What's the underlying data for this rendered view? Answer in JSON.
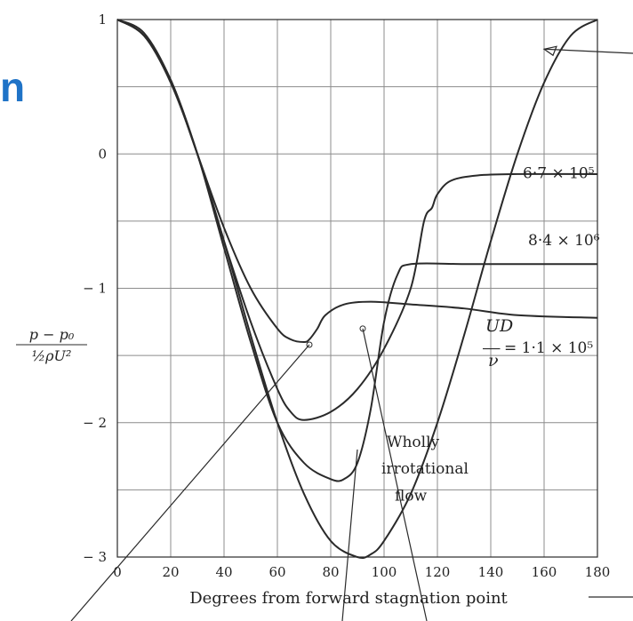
{
  "fragment_text": "n",
  "colors": {
    "accent": "#1f73c7",
    "ink": "#2a2a2a",
    "grid": "#8c8c8c"
  },
  "chart_data": {
    "type": "line",
    "xlabel": "Degrees from forward stagnation point",
    "ylabel": {
      "numerator": "p − p₀",
      "denominator": "½ρU²"
    },
    "xlim": [
      0,
      180
    ],
    "ylim": [
      -3,
      1
    ],
    "x_ticks": [
      0,
      20,
      40,
      60,
      80,
      100,
      120,
      140,
      160,
      180
    ],
    "x_tick_labels": [
      "0",
      "20",
      "40",
      "60",
      "80",
      "100",
      "120",
      "140",
      "160",
      "180"
    ],
    "y_ticks": [
      1,
      0,
      -1,
      -2,
      -3
    ],
    "y_tick_labels": [
      "1",
      "0",
      "− 1",
      "− 2",
      "− 3"
    ],
    "grid": true,
    "annotations": [
      {
        "key": "r67",
        "text": "6·7 × 10⁵",
        "x": 152,
        "y": -0.18
      },
      {
        "key": "r84",
        "text": "8·4 × 10⁶",
        "x": 154,
        "y": -0.68
      },
      {
        "key": "ud_num",
        "text": "UD",
        "x": 138,
        "y": -1.32
      },
      {
        "key": "ud_den",
        "text": "ν",
        "x": 139,
        "y": -1.58
      },
      {
        "key": "ud_val",
        "text": "= 1·1 × 10⁵",
        "x": 145,
        "y": -1.48
      },
      {
        "key": "wholly",
        "text": "Wholly",
        "x": 101,
        "y": -2.18
      },
      {
        "key": "irrotational",
        "text": "irrotational",
        "x": 99,
        "y": -2.38
      },
      {
        "key": "flow",
        "text": "flow",
        "x": 104,
        "y": -2.58
      }
    ],
    "series": [
      {
        "key": "re_1_1e5",
        "x": [
          0,
          10,
          20,
          30,
          40,
          50,
          60,
          65,
          70,
          72,
          75,
          78,
          85,
          95,
          110,
          130,
          150,
          180
        ],
        "y": [
          1,
          0.9,
          0.55,
          0.0,
          -0.55,
          -1.0,
          -1.3,
          -1.38,
          -1.4,
          -1.38,
          -1.3,
          -1.2,
          -1.12,
          -1.1,
          -1.12,
          -1.15,
          -1.2,
          -1.22
        ]
      },
      {
        "key": "re_6_7e5",
        "x": [
          0,
          10,
          20,
          30,
          40,
          50,
          60,
          65,
          70,
          80,
          90,
          100,
          110,
          115,
          118,
          120,
          125,
          135,
          150,
          180
        ],
        "y": [
          1,
          0.88,
          0.55,
          0.0,
          -0.65,
          -1.25,
          -1.75,
          -1.92,
          -1.98,
          -1.92,
          -1.75,
          -1.45,
          -1.0,
          -0.5,
          -0.4,
          -0.3,
          -0.2,
          -0.16,
          -0.15,
          -0.15
        ]
      },
      {
        "key": "re_8_4e6",
        "x": [
          0,
          10,
          20,
          30,
          40,
          50,
          60,
          70,
          80,
          85,
          90,
          95,
          100,
          105,
          110,
          130,
          150,
          180
        ],
        "y": [
          1,
          0.88,
          0.55,
          0.0,
          -0.7,
          -1.4,
          -2.0,
          -2.3,
          -2.42,
          -2.42,
          -2.3,
          -1.9,
          -1.25,
          -0.9,
          -0.82,
          -0.82,
          -0.82,
          -0.82
        ]
      },
      {
        "key": "irrotational",
        "x": [
          0,
          10,
          20,
          30,
          40,
          50,
          60,
          70,
          80,
          90,
          95,
          100,
          110,
          120,
          130,
          140,
          150,
          160,
          170,
          180
        ],
        "y": [
          1,
          0.88,
          0.53,
          0.0,
          -0.65,
          -1.35,
          -2.0,
          -2.53,
          -2.88,
          -3.0,
          -2.98,
          -2.88,
          -2.53,
          -2.0,
          -1.35,
          -0.65,
          0.0,
          0.53,
          0.88,
          1
        ]
      }
    ]
  }
}
